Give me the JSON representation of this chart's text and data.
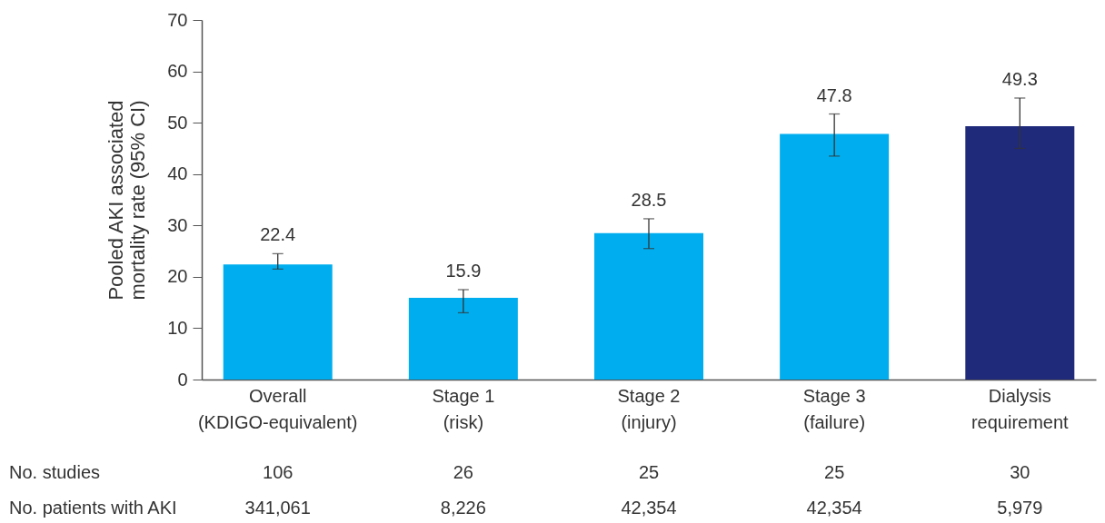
{
  "chart_data": {
    "type": "bar",
    "ylabel": "Pooled AKI associated mortality rate (95% CI)",
    "categories": [
      "Overall (KDIGO-equivalent)",
      "Stage 1 (risk)",
      "Stage 2 (injury)",
      "Stage 3 (failure)",
      "Dialysis requirement"
    ],
    "values": [
      22.4,
      15.9,
      28.5,
      47.8,
      49.3
    ],
    "errors": [
      [
        21.5,
        24.5
      ],
      [
        13,
        17.5
      ],
      [
        25.5,
        31.3
      ],
      [
        43.5,
        51.7
      ],
      [
        45,
        54.8
      ]
    ],
    "colors": [
      "#00aeef",
      "#00aeef",
      "#00aeef",
      "#00aeef",
      "#1f2a7a"
    ],
    "ylim": [
      0,
      70
    ],
    "yticks": [
      0,
      10,
      20,
      30,
      40,
      50,
      60,
      70
    ],
    "data_labels": true,
    "annotations": [
      "No. studies",
      "106",
      "26",
      "25",
      "25",
      "30",
      "No. patients with AKI",
      "341,061",
      "8,226",
      "42,354",
      "42,354",
      "5,979"
    ]
  }
}
